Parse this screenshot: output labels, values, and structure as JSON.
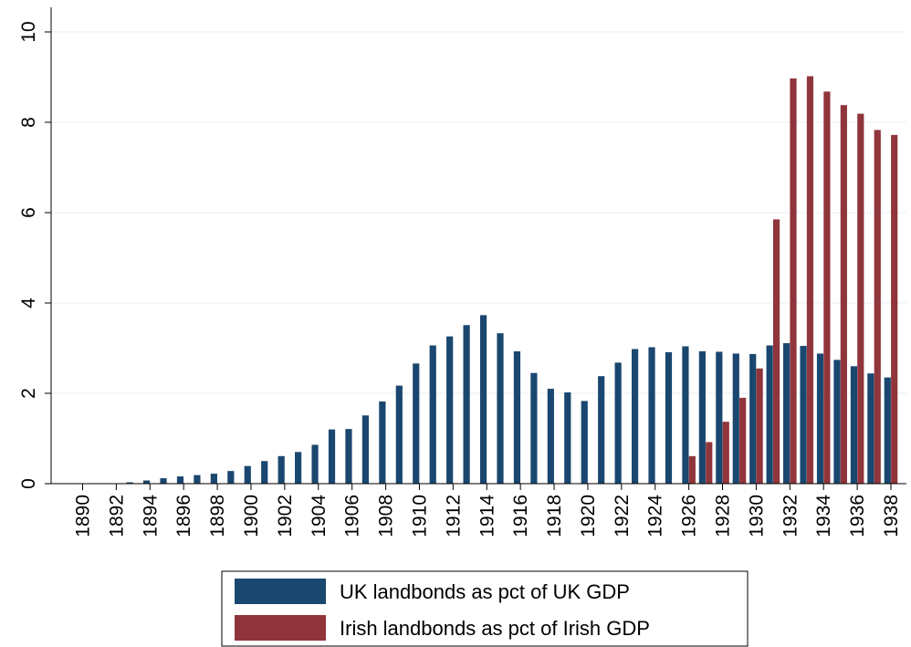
{
  "chart_data": {
    "type": "bar",
    "title": "",
    "xlabel": "",
    "ylabel": "",
    "ylim": [
      0,
      10
    ],
    "yticks": [
      0,
      2,
      4,
      6,
      8,
      10
    ],
    "categories": [
      "1890",
      "1891",
      "1892",
      "1893",
      "1894",
      "1895",
      "1896",
      "1897",
      "1898",
      "1899",
      "1900",
      "1901",
      "1902",
      "1903",
      "1904",
      "1905",
      "1906",
      "1907",
      "1908",
      "1909",
      "1910",
      "1911",
      "1912",
      "1913",
      "1914",
      "1915",
      "1916",
      "1917",
      "1918",
      "1919",
      "1920",
      "1921",
      "1922",
      "1923",
      "1924",
      "1925",
      "1926",
      "1927",
      "1928",
      "1929",
      "1930",
      "1931",
      "1932",
      "1933",
      "1934",
      "1935",
      "1936",
      "1937",
      "1938"
    ],
    "tick_labels": [
      "1890",
      "1892",
      "1894",
      "1896",
      "1898",
      "1900",
      "1902",
      "1904",
      "1906",
      "1908",
      "1910",
      "1912",
      "1914",
      "1916",
      "1918",
      "1920",
      "1922",
      "1924",
      "1926",
      "1928",
      "1930",
      "1932",
      "1934",
      "1936",
      "1938"
    ],
    "grid": true,
    "legend_position": "bottom",
    "series": [
      {
        "name": "UK landbonds as pct of UK GDP",
        "color": "#1a476f",
        "values": [
          0,
          0,
          0.01,
          0.03,
          0.07,
          0.12,
          0.16,
          0.19,
          0.22,
          0.28,
          0.39,
          0.5,
          0.61,
          0.7,
          0.86,
          1.2,
          1.21,
          1.51,
          1.82,
          2.17,
          2.66,
          3.06,
          3.26,
          3.51,
          3.73,
          3.33,
          2.93,
          2.45,
          2.1,
          2.02,
          1.83,
          2.38,
          2.68,
          2.98,
          3.02,
          2.91,
          3.04,
          2.93,
          2.92,
          2.88,
          2.87,
          3.06,
          3.11,
          3.05,
          2.88,
          2.74,
          2.6,
          2.44,
          2.35
        ]
      },
      {
        "name": "Irish landbonds as pct of Irish GDP",
        "color": "#90353b",
        "values": [
          null,
          null,
          null,
          null,
          null,
          null,
          null,
          null,
          null,
          null,
          null,
          null,
          null,
          null,
          null,
          null,
          null,
          null,
          null,
          null,
          null,
          null,
          null,
          null,
          null,
          null,
          null,
          null,
          null,
          null,
          null,
          null,
          null,
          null,
          null,
          null,
          0.61,
          0.92,
          1.37,
          1.9,
          2.55,
          5.85,
          8.97,
          9.02,
          8.68,
          8.38,
          8.19,
          7.83,
          7.72
        ]
      }
    ]
  }
}
